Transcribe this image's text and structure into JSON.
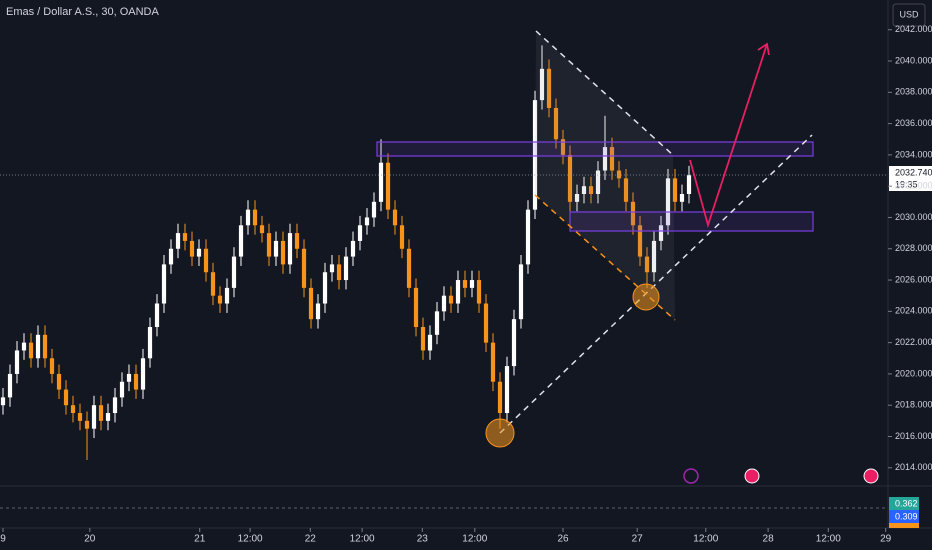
{
  "chart_data": {
    "type": "candlestick",
    "title": "Emas / Dollar A.S., 30, OANDA",
    "currency": "USD",
    "last_price_label": "2032.740",
    "countdown": "19:35",
    "oscillator_labels": [
      "0.362",
      "0.309"
    ],
    "up_color": "#ffffff",
    "down_color": "#f7931a",
    "xlim": [
      -0.43,
      126
    ],
    "ylim": [
      2012.9,
      2043.9
    ],
    "xticks": [
      {
        "value": 0,
        "label": "9"
      },
      {
        "value": 12.4,
        "label": "20"
      },
      {
        "value": 28.1,
        "label": "21"
      },
      {
        "value": 35.3,
        "label": "12:00"
      },
      {
        "value": 43.9,
        "label": "22"
      },
      {
        "value": 51.3,
        "label": "12:00"
      },
      {
        "value": 59.9,
        "label": "23"
      },
      {
        "value": 67.4,
        "label": "12:00"
      },
      {
        "value": 80,
        "label": "26"
      },
      {
        "value": 90.6,
        "label": "27"
      },
      {
        "value": 100.4,
        "label": "12:00"
      },
      {
        "value": 109.3,
        "label": "28"
      },
      {
        "value": 117.9,
        "label": "12:00"
      },
      {
        "value": 126.1,
        "label": "29"
      }
    ],
    "yticks": [
      {
        "value": 2014,
        "label": "2014.000"
      },
      {
        "value": 2016,
        "label": "2016.000"
      },
      {
        "value": 2018,
        "label": "2018.000"
      },
      {
        "value": 2020,
        "label": "2020.000"
      },
      {
        "value": 2022,
        "label": "2022.000"
      },
      {
        "value": 2024,
        "label": "2024.000"
      },
      {
        "value": 2026,
        "label": "2026.000"
      },
      {
        "value": 2028,
        "label": "2028.000"
      },
      {
        "value": 2030,
        "label": "2030.000"
      },
      {
        "value": 2032,
        "label": "2032.000"
      },
      {
        "value": 2034,
        "label": "2034.000"
      },
      {
        "value": 2036,
        "label": "2036.000"
      },
      {
        "value": 2038,
        "label": "2038.000"
      },
      {
        "value": 2040,
        "label": "2040.000"
      },
      {
        "value": 2042,
        "label": "2042.000"
      }
    ],
    "open": [
      2018,
      2018.5,
      2020,
      2021.5,
      2022,
      2021,
      2022.5,
      2021,
      2020,
      2019,
      2018,
      2017.5,
      2017,
      2016.5,
      2018,
      2017,
      2017.5,
      2018.5,
      2019.5,
      2020,
      2019,
      2021,
      2023,
      2024.5,
      2027,
      2028,
      2029,
      2028.5,
      2027.5,
      2028,
      2026.5,
      2025,
      2024.5,
      2025.5,
      2027.5,
      2029.5,
      2030.5,
      2029.5,
      2029,
      2027.5,
      2028.5,
      2027,
      2029,
      2028,
      2025.5,
      2023.5,
      2024.5,
      2026.5,
      2027,
      2026,
      2027.5,
      2028.5,
      2029.5,
      2030,
      2031,
      2033.5,
      2030.5,
      2029.5,
      2028,
      2025.5,
      2023,
      2021.5,
      2022.5,
      2024,
      2025,
      2024.5,
      2026,
      2025.5,
      2026,
      2024.5,
      2022,
      2019.5,
      2017.5,
      2020.5,
      2023.5,
      2027,
      2030.5,
      2037.5,
      2039.5,
      2037,
      2035,
      2034,
      2031,
      2031.5,
      2032,
      2031.5,
      2033,
      2034.5,
      2033,
      2032.5,
      2031,
      2029.5,
      2027.5,
      2026.5,
      2028.5,
      2029.5,
      2032.5,
      2031,
      2031.5
    ],
    "high": [
      2019.1,
      2020.6,
      2022.1,
      2022.6,
      2022.6,
      2023.1,
      2023.1,
      2021.6,
      2020.6,
      2019.6,
      2018.6,
      2018.1,
      2017.6,
      2018.6,
      2018.6,
      2018.1,
      2019.1,
      2020.1,
      2020.6,
      2020.6,
      2021.6,
      2023.6,
      2025.1,
      2027.6,
      2028.6,
      2029.6,
      2029.6,
      2029.1,
      2028.6,
      2028.6,
      2027.1,
      2025.6,
      2026.1,
      2028.1,
      2030.1,
      2031.1,
      2031.1,
      2030.1,
      2029.6,
      2029.1,
      2029.1,
      2029.6,
      2029.6,
      2028.6,
      2026.1,
      2025.1,
      2027.1,
      2027.6,
      2027.6,
      2028.1,
      2029.1,
      2030.1,
      2030.6,
      2031.6,
      2035,
      2034.1,
      2031.1,
      2030.1,
      2028.6,
      2026.1,
      2023.6,
      2023.1,
      2024.6,
      2025.6,
      2025.6,
      2026.6,
      2026.6,
      2026.6,
      2026.6,
      2025.1,
      2022.6,
      2020.1,
      2021.1,
      2024.1,
      2027.6,
      2031.1,
      2038.1,
      2041,
      2040.1,
      2037.6,
      2035.6,
      2034.6,
      2032.1,
      2032.6,
      2032.6,
      2033.6,
      2036.5,
      2035.1,
      2033.6,
      2033.1,
      2031.6,
      2030.1,
      2028.1,
      2029.1,
      2030.1,
      2033.1,
      2033.1,
      2032.1,
      2033.3
    ],
    "low": [
      2017.4,
      2017.9,
      2019.4,
      2020.9,
      2020.4,
      2020.4,
      2020.4,
      2019.4,
      2018.4,
      2017.4,
      2016.9,
      2016.4,
      2014.5,
      2015.9,
      2016.4,
      2016.4,
      2016.9,
      2017.9,
      2018.9,
      2018.4,
      2018.4,
      2020.4,
      2022.4,
      2023.9,
      2026.4,
      2027.4,
      2027.9,
      2026.9,
      2026.9,
      2025.9,
      2024.4,
      2023.9,
      2023.9,
      2024.9,
      2026.9,
      2028.9,
      2028.9,
      2028.4,
      2026.9,
      2026.9,
      2026.4,
      2026.4,
      2027.4,
      2024.9,
      2022.9,
      2022.9,
      2023.9,
      2025.9,
      2025.4,
      2025.4,
      2026.9,
      2027.9,
      2028.9,
      2029.4,
      2030.4,
      2029.9,
      2028.9,
      2027.4,
      2024.9,
      2022.4,
      2020.9,
      2020.9,
      2021.9,
      2023.4,
      2023.9,
      2023.9,
      2024.9,
      2024.9,
      2023.9,
      2021.4,
      2018.9,
      2016.5,
      2016.9,
      2019.9,
      2022.9,
      2026.4,
      2029.9,
      2036.9,
      2036.4,
      2034.4,
      2033.4,
      2030.4,
      2030.4,
      2030.9,
      2030.9,
      2030.9,
      2032.4,
      2032.4,
      2031.9,
      2030.4,
      2028.9,
      2026.9,
      2025.5,
      2025.9,
      2027.9,
      2028.9,
      2030.4,
      2030.4,
      2030.9
    ],
    "close": [
      2018.5,
      2020,
      2021.5,
      2022,
      2021,
      2022.5,
      2021,
      2020,
      2019,
      2018,
      2017.5,
      2017,
      2016.5,
      2018,
      2017,
      2017.5,
      2018.5,
      2019.5,
      2020,
      2019,
      2021,
      2023,
      2024.5,
      2027,
      2028,
      2029,
      2028.5,
      2027.5,
      2028,
      2026.5,
      2025,
      2024.5,
      2025.5,
      2027.5,
      2029.5,
      2030.5,
      2029.5,
      2029,
      2027.5,
      2028.5,
      2027,
      2029,
      2028,
      2025.5,
      2023.5,
      2024.5,
      2026.5,
      2027,
      2026,
      2027.5,
      2028.5,
      2029.5,
      2030,
      2031,
      2033.5,
      2030.5,
      2029.5,
      2028,
      2025.5,
      2023,
      2021.5,
      2022.5,
      2024,
      2025,
      2024.5,
      2026,
      2025.5,
      2026,
      2024.5,
      2022,
      2019.5,
      2017.5,
      2020.5,
      2023.5,
      2027,
      2030.5,
      2037.5,
      2039.5,
      2037,
      2035,
      2034,
      2031,
      2031.5,
      2032,
      2031.5,
      2033,
      2034.5,
      2033,
      2032.5,
      2031,
      2029.5,
      2027.5,
      2026.5,
      2028.5,
      2029.5,
      2032.5,
      2031,
      2031.5,
      2032.7
    ]
  }
}
